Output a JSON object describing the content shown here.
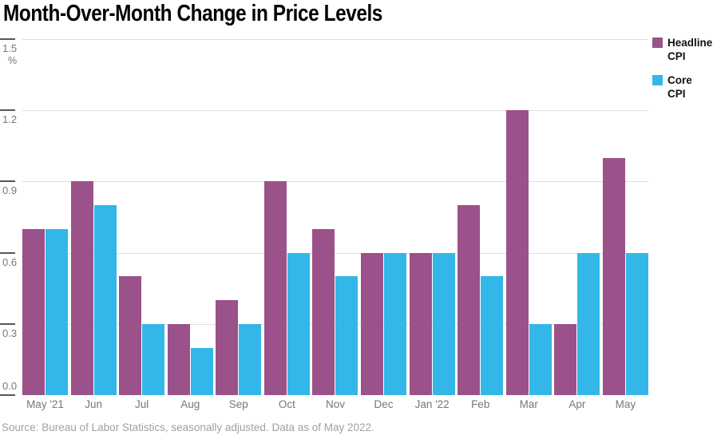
{
  "title": "Month-Over-Month Change in Price Levels",
  "source_note": "Source: Bureau of Labor Statistics, seasonally adjusted. Data as of May 2022.",
  "colors": {
    "headline_cpi": "#9B5189",
    "core_cpi": "#33B7E8",
    "gridline": "#DEDEDE",
    "tick": "#55565A",
    "axis_text": "#76777B",
    "source_text": "#9FA0A4"
  },
  "legend": {
    "position": "top-right",
    "items": [
      {
        "label": "Headline CPI",
        "color": "#9B5189"
      },
      {
        "label": "Core CPI",
        "color": "#33B7E8"
      }
    ]
  },
  "chart_data": {
    "type": "bar",
    "title": "Month-Over-Month Change in Price Levels",
    "xlabel": "",
    "ylabel": "%",
    "unit": "%",
    "ylim": [
      0,
      1.5
    ],
    "yticks": [
      1.5,
      1.2,
      0.9,
      0.6,
      0.3,
      0.0
    ],
    "grid": true,
    "legend_position": "top-right",
    "categories": [
      "May '21",
      "Jun",
      "Jul",
      "Aug",
      "Sep",
      "Oct",
      "Nov",
      "Dec",
      "Jan '22",
      "Feb",
      "Mar",
      "Apr",
      "May"
    ],
    "series": [
      {
        "name": "Headline CPI",
        "color": "#9B5189",
        "values": [
          0.7,
          0.9,
          0.5,
          0.3,
          0.4,
          0.9,
          0.7,
          0.6,
          0.6,
          0.8,
          1.2,
          0.3,
          1.0
        ]
      },
      {
        "name": "Core CPI",
        "color": "#33B7E8",
        "values": [
          0.7,
          0.8,
          0.3,
          0.2,
          0.3,
          0.6,
          0.5,
          0.6,
          0.6,
          0.5,
          0.3,
          0.6,
          0.6
        ]
      }
    ],
    "source": "Source: Bureau of Labor Statistics, seasonally adjusted. Data as of May 2022."
  }
}
